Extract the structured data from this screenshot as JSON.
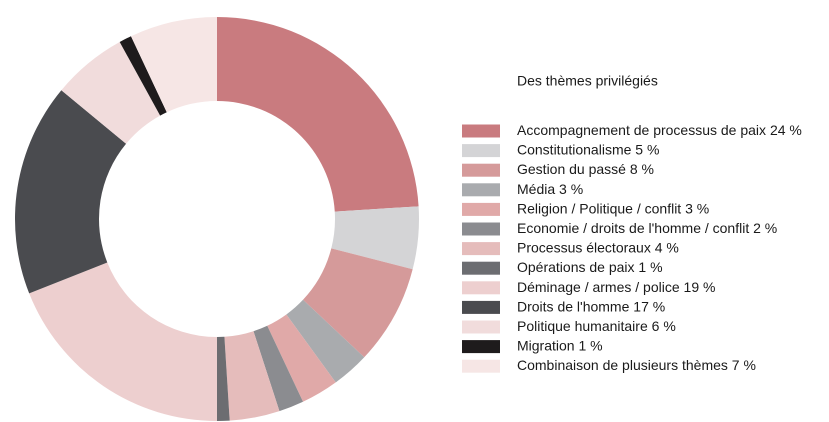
{
  "chart_data": {
    "type": "donut",
    "title": "Des thèmes privilégiés",
    "categories": [
      "Accompagnement de processus de paix",
      "Constitutionalisme",
      "Gestion du passé",
      "Média",
      "Religion / Politique / conflit",
      "Economie / droits de l'homme / conflit",
      "Processus électoraux",
      "Opérations de paix",
      "Déminage / armes / police",
      "Droits de l'homme",
      "Politique humanitaire",
      "Migration",
      "Combinaison de plusieurs thèmes"
    ],
    "values": [
      24,
      5,
      8,
      3,
      3,
      2,
      4,
      1,
      19,
      17,
      6,
      1,
      7
    ],
    "value_labels": [
      "24 %",
      "5 %",
      "8 %",
      "3 %",
      "3 %",
      "2 %",
      "4 %",
      "1 %",
      "19 %",
      "17 %",
      "6 %",
      "1 %",
      "7 %"
    ],
    "colors": [
      "#c97b7f",
      "#d4d4d6",
      "#d59a9a",
      "#a9abae",
      "#e0a9a8",
      "#8b8c90",
      "#e5bcbb",
      "#6c6d71",
      "#edcfcf",
      "#4a4b4f",
      "#f1dcdc",
      "#1e1b1c",
      "#f6e6e5"
    ]
  }
}
